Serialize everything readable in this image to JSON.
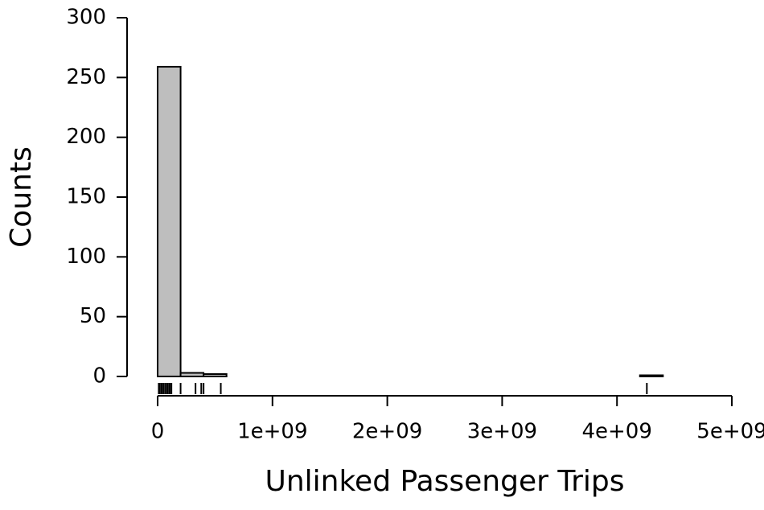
{
  "chart_data": {
    "type": "histogram",
    "x_label": "Unlinked Passenger Trips",
    "y_label": "Counts",
    "bins": [
      0,
      200000000,
      400000000,
      600000000,
      800000000,
      1000000000,
      1200000000,
      1400000000,
      1600000000,
      1800000000,
      2000000000,
      2200000000,
      2400000000,
      2600000000,
      2800000000,
      3000000000,
      3200000000,
      3400000000,
      3600000000,
      3800000000,
      4000000000,
      4200000000,
      4400000000
    ],
    "values": [
      259,
      3,
      2,
      0,
      0,
      0,
      0,
      0,
      0,
      0,
      0,
      0,
      0,
      0,
      0,
      0,
      0,
      0,
      0,
      0,
      0,
      1
    ],
    "rug": [
      10000000,
      20000000,
      35000000,
      50000000,
      65000000,
      80000000,
      90000000,
      105000000,
      120000000,
      200000000,
      330000000,
      380000000,
      400000000,
      550000000,
      4260000000
    ],
    "color": "#bebebe",
    "xlim": [
      0,
      5000000000
    ],
    "xticks": [
      0,
      {
        "value": 1000000000,
        "label": "1e+09"
      },
      {
        "value": 2000000000,
        "label": "2e+09"
      },
      {
        "value": 3000000000,
        "label": "3e+09"
      },
      {
        "value": 4000000000,
        "label": "4e+09"
      },
      {
        "value": 5000000000,
        "label": "5e+09"
      }
    ],
    "ylim": [
      0,
      300
    ],
    "yticks": [
      0,
      50,
      100,
      150,
      200,
      250,
      300
    ]
  }
}
